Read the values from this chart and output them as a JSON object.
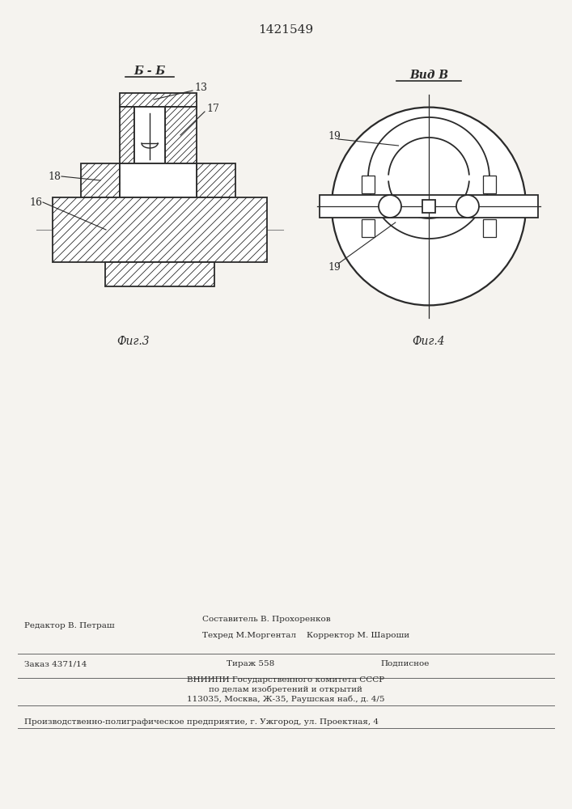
{
  "patent_number": "1421549",
  "bg_color": "#f5f3ef",
  "line_color": "#2a2a2a",
  "fig3_caption": "Фиг.3",
  "fig4_caption": "Фиг.4",
  "footer_line1_left": "Редактор В. Петраш",
  "footer_line1_center_top": "Составитель В. Прохоренков",
  "footer_line1_center_bot": "Техред М.Моргентал    Корректор М. Шароши",
  "footer_line2_left": "Заказ 4371/14",
  "footer_line2_center": "Тираж 558",
  "footer_line2_right": "Подписное",
  "footer_line3": "ВНИИПИ Государственного комитета СССР",
  "footer_line4": "по делам изобретений и открытий",
  "footer_line5": "113035, Москва, Ж-35, Раушская наб., д. 4/5",
  "footer_line6": "Производственно-полиграфическое предприятие, г. Ужгород, ул. Проектная, 4"
}
